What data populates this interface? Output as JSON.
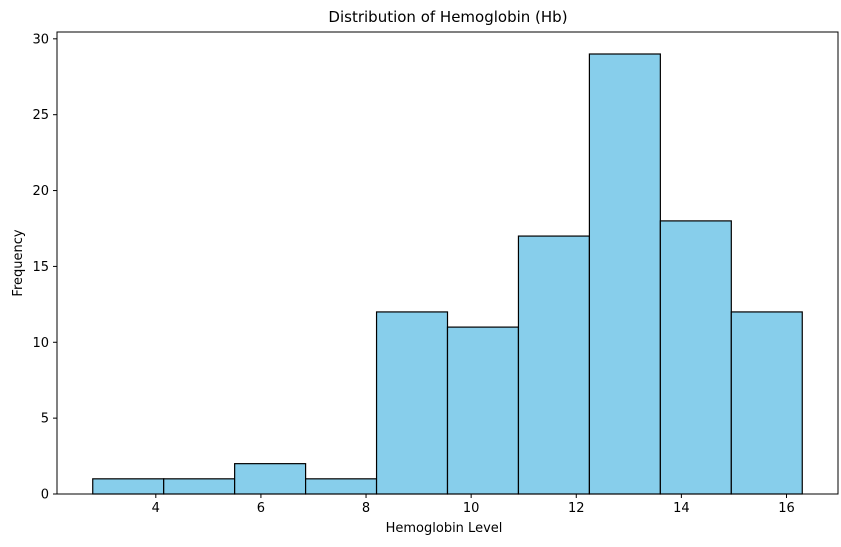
{
  "chart_data": {
    "type": "bar",
    "title": "Distribution of Hemoglobin (Hb)",
    "xlabel": "Hemoglobin Level",
    "ylabel": "Frequency",
    "bin_edges": [
      2.8,
      4.15,
      5.5,
      6.85,
      8.2,
      9.55,
      10.9,
      12.25,
      13.6,
      14.95,
      16.3
    ],
    "values": [
      1,
      1,
      2,
      1,
      12,
      11,
      17,
      29,
      18,
      12
    ],
    "xlim": [
      2.12,
      16.98
    ],
    "ylim": [
      0,
      30.45
    ],
    "xticks": [
      4,
      6,
      8,
      10,
      12,
      14,
      16
    ],
    "yticks": [
      0,
      5,
      10,
      15,
      20,
      25,
      30
    ],
    "grid": false,
    "bar_color": "#87ceeb",
    "edge_color": "#000000"
  }
}
